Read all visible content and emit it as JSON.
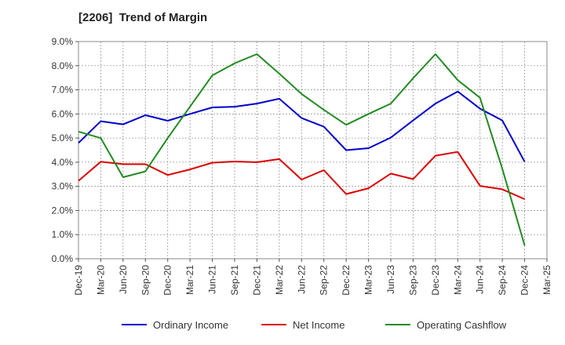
{
  "chart_data": {
    "type": "line",
    "title": "[2206]  Trend of Margin",
    "xlabel": "",
    "ylabel": "",
    "x": [
      "Dec-19",
      "Mar-20",
      "Jun-20",
      "Sep-20",
      "Dec-20",
      "Mar-21",
      "Jun-21",
      "Sep-21",
      "Dec-21",
      "Mar-22",
      "Jun-22",
      "Sep-22",
      "Dec-22",
      "Mar-23",
      "Jun-23",
      "Sep-23",
      "Dec-23",
      "Mar-24",
      "Jun-24",
      "Sep-24",
      "Dec-24",
      "Mar-25"
    ],
    "ylim": [
      0,
      9
    ],
    "yticks": [
      0,
      1,
      2,
      3,
      4,
      5,
      6,
      7,
      8,
      9
    ],
    "ytick_labels": [
      "0.0%",
      "1.0%",
      "2.0%",
      "3.0%",
      "4.0%",
      "5.0%",
      "6.0%",
      "7.0%",
      "8.0%",
      "9.0%"
    ],
    "grid": true,
    "legend_position": "bottom",
    "series": [
      {
        "name": "Ordinary Income",
        "color": "#0000cc",
        "values": [
          4.8,
          5.7,
          5.57,
          5.95,
          5.72,
          6.0,
          6.27,
          6.3,
          6.43,
          6.63,
          5.83,
          5.47,
          4.5,
          4.58,
          5.02,
          5.73,
          6.43,
          6.93,
          6.22,
          5.73,
          4.02,
          null
        ]
      },
      {
        "name": "Net Income",
        "color": "#dd0000",
        "values": [
          3.23,
          4.02,
          3.92,
          3.92,
          3.47,
          3.7,
          3.98,
          4.03,
          4.0,
          4.13,
          3.28,
          3.67,
          2.68,
          2.92,
          3.53,
          3.3,
          4.27,
          4.43,
          3.02,
          2.88,
          2.47,
          null
        ]
      },
      {
        "name": "Operating Cashflow",
        "color": "#228b22",
        "values": [
          5.27,
          5.0,
          3.38,
          3.62,
          5.0,
          6.3,
          7.6,
          8.1,
          8.48,
          7.67,
          6.83,
          6.17,
          5.55,
          6.0,
          6.43,
          7.48,
          8.48,
          7.4,
          6.67,
          3.73,
          0.55,
          null
        ]
      }
    ]
  }
}
